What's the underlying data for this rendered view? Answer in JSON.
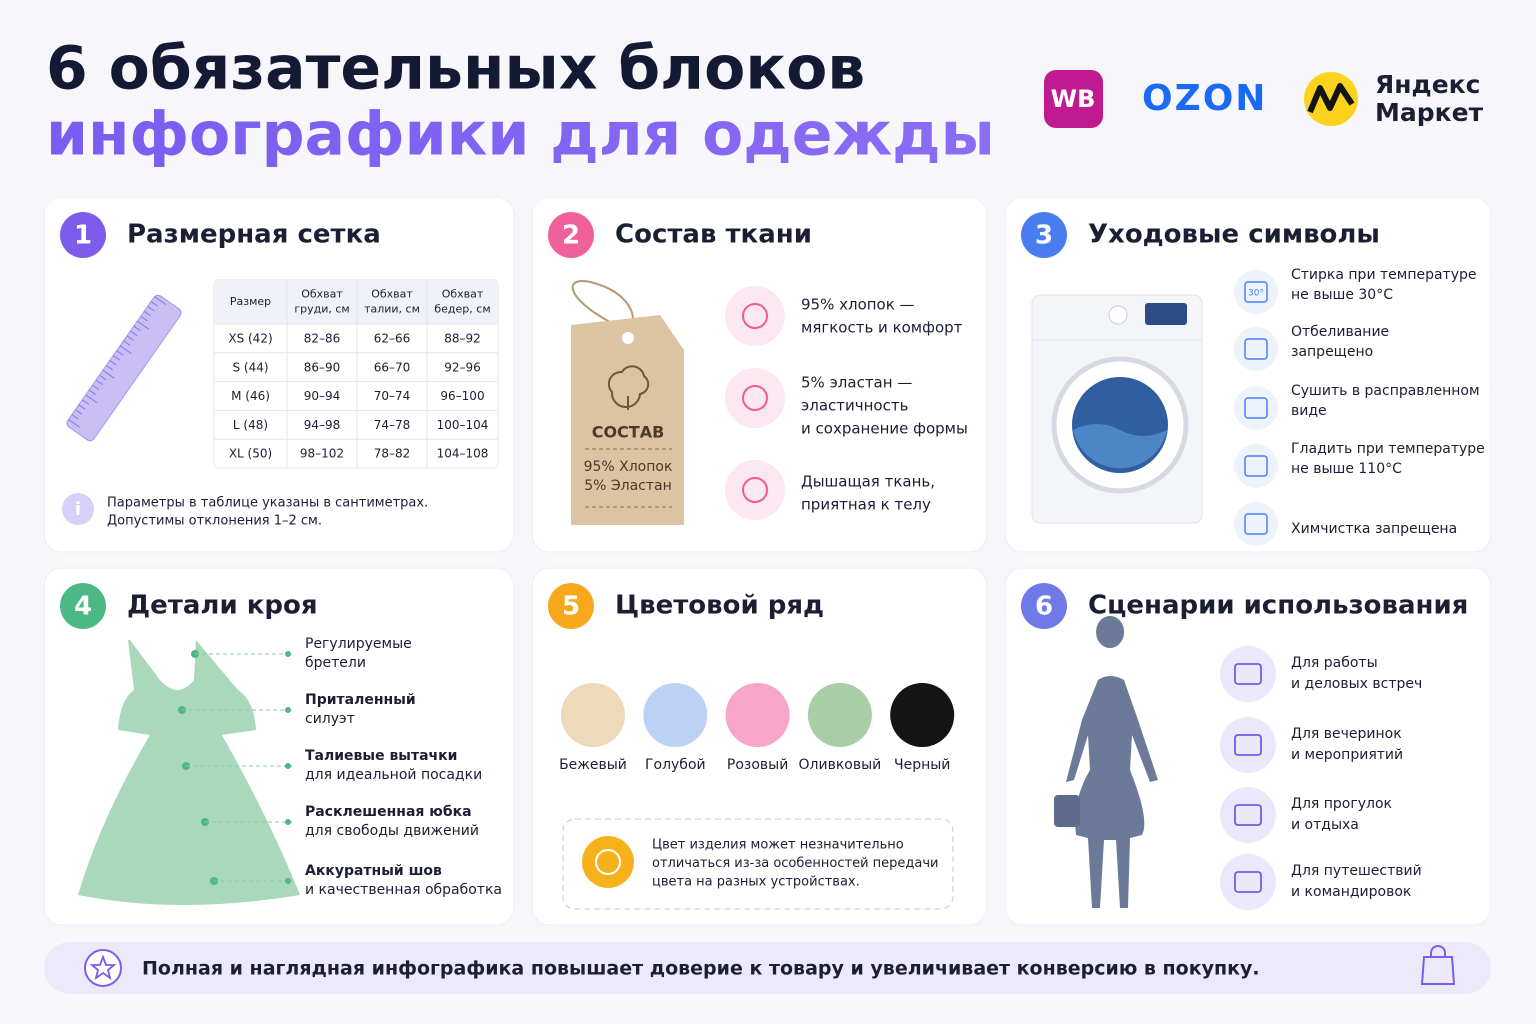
{
  "header": {
    "title_line1": "6 обязательных блоков",
    "title_line2": "инфографики для одежды"
  },
  "logos": {
    "wb": "WB",
    "ozon": "OZON",
    "yandex": [
      "Яндекс",
      "Маркет"
    ]
  },
  "cards": [
    {
      "number": "1",
      "title": "Размерная сетка",
      "table": {
        "header": [
          [
            "Размер"
          ],
          [
            "Обхват",
            "груди, см"
          ],
          [
            "Обхват",
            "талии, см"
          ],
          [
            "Обхват",
            "бедер, см"
          ]
        ],
        "rows": [
          [
            "XS (42)",
            "82–86",
            "62–66",
            "88–92"
          ],
          [
            "S (44)",
            "86–90",
            "66–70",
            "92–96"
          ],
          [
            "M (46)",
            "90–94",
            "70–74",
            "96–100"
          ],
          [
            "L (48)",
            "94–98",
            "74–78",
            "100–104"
          ],
          [
            "XL (50)",
            "98–102",
            "78–82",
            "104–108"
          ]
        ]
      },
      "note": [
        "Параметры в таблице указаны в сантиметрах.",
        "Допустимы отклонения 1–2 см."
      ]
    },
    {
      "number": "2",
      "title": "Состав ткани",
      "tag": {
        "label": "СОСТАВ",
        "lines": [
          "95% Хлопок",
          "5% Эластан"
        ]
      },
      "items": [
        {
          "lines": [
            "95% хлопок —",
            "мягкость и комфорт"
          ]
        },
        {
          "lines": [
            "5% эластан —",
            "эластичность",
            "и сохранение формы"
          ]
        },
        {
          "lines": [
            "Дышащая ткань,",
            "приятная к телу"
          ]
        }
      ]
    },
    {
      "number": "3",
      "title": "Уходовые символы",
      "icon_label": "30°",
      "items": [
        {
          "lines": [
            "Стирка при температуре",
            "не выше 30°C"
          ]
        },
        {
          "lines": [
            "Отбеливание",
            "запрещено"
          ]
        },
        {
          "lines": [
            "Сушить в расправленном",
            "виде"
          ]
        },
        {
          "lines": [
            "Гладить при температуре",
            "не выше 110°C"
          ]
        },
        {
          "lines": [
            "Химчистка запрещена"
          ]
        }
      ]
    },
    {
      "number": "4",
      "title": "Детали кроя",
      "items": [
        {
          "lines": [
            "Регулируемые",
            "бретели"
          ]
        },
        {
          "lines": [
            "Приталенный",
            "силуэт"
          ]
        },
        {
          "lines": [
            "Талиевые вытачки",
            "для идеальной посадки"
          ]
        },
        {
          "lines": [
            "Расклешенная юбка",
            "для свободы движений"
          ]
        },
        {
          "lines": [
            "Аккуратный шов",
            "и качественная обработка"
          ]
        }
      ]
    },
    {
      "number": "5",
      "title": "Цветовой ряд",
      "colors": [
        {
          "name": "Бежевый",
          "color": "#efd9bb"
        },
        {
          "name": "Голубой",
          "color": "#bcd2f5"
        },
        {
          "name": "Розовый",
          "color": "#f7a6c9"
        },
        {
          "name": "Оливковый",
          "color": "#a9cda6"
        },
        {
          "name": "Черный",
          "color": "#141414"
        }
      ],
      "note": [
        "Цвет изделия может незначительно",
        "отличаться из-за особенностей передачи",
        "цвета на разных устройствах."
      ]
    },
    {
      "number": "6",
      "title": "Сценарии использования",
      "items": [
        {
          "lines": [
            "Для работы",
            "и деловых встреч"
          ]
        },
        {
          "lines": [
            "Для вечеринок",
            "и мероприятий"
          ]
        },
        {
          "lines": [
            "Для прогулок",
            "и отдыха"
          ]
        },
        {
          "lines": [
            "Для путешествий",
            "и командировок"
          ]
        }
      ]
    }
  ],
  "footer": {
    "text": "Полная и наглядная инфографика повышает доверие к товару и увеличивает конверсию в покупку."
  }
}
